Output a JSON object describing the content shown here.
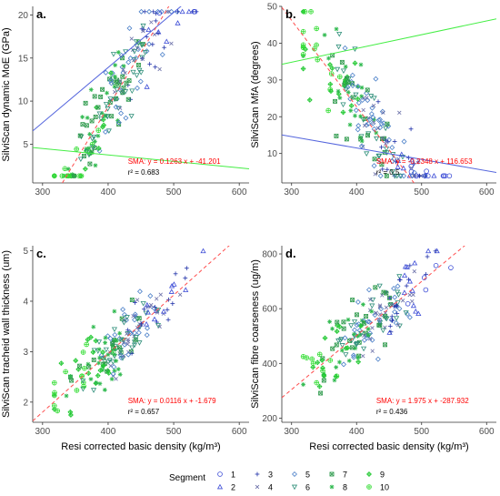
{
  "legend": {
    "title": "Segment",
    "items": [
      {
        "label": "1",
        "shape": "circle",
        "color": "#3b4bd6"
      },
      {
        "label": "2",
        "shape": "triangle",
        "color": "#3b4bd6"
      },
      {
        "label": "3",
        "shape": "plus",
        "color": "#2233aa"
      },
      {
        "label": "4",
        "shape": "cross",
        "color": "#6a6fa8"
      },
      {
        "label": "5",
        "shape": "diamond",
        "color": "#4a7fc8"
      },
      {
        "label": "6",
        "shape": "triangle-down",
        "color": "#2f8f7a"
      },
      {
        "label": "7",
        "shape": "square-x",
        "color": "#2e9a4c"
      },
      {
        "label": "8",
        "shape": "star",
        "color": "#2bb84b"
      },
      {
        "label": "9",
        "shape": "diamond-plus",
        "color": "#22c933"
      },
      {
        "label": "10",
        "shape": "circle-plus",
        "color": "#33dd33"
      }
    ]
  },
  "colors": {
    "blue_fit": "#5566dd",
    "green_fit": "#44ee44",
    "sma_line": "#ff4d4d",
    "axis": "#333333"
  },
  "chart_data": [
    {
      "type": "scatter",
      "panel": "a.",
      "xlabel": "",
      "ylabel": "SilviScan dynamic MoE (GPa)",
      "xlim": [
        285,
        615
      ],
      "ylim": [
        0.5,
        21
      ],
      "xticks": [
        300,
        400,
        500,
        600
      ],
      "yticks": [
        5,
        10,
        15,
        20
      ],
      "sma": {
        "slope": 0.1263,
        "intercept": -41.201
      },
      "equation": "SMA: y =  0.1263 x + -41.201",
      "r2": "r² = 0.683",
      "blue_fit": {
        "slope": 0.064,
        "intercept": -11.7
      },
      "green_fit": {
        "slope": -0.0075,
        "intercept": 6.75
      },
      "center": {
        "x": 420,
        "y": 12
      },
      "spread": {
        "x": 48,
        "y": 2.4
      },
      "n": 200,
      "seed": 11
    },
    {
      "type": "scatter",
      "panel": "b.",
      "xlabel": "",
      "ylabel": "SilviScan MfA (degrees)",
      "xlim": [
        285,
        615
      ],
      "ylim": [
        2,
        50
      ],
      "xticks": [
        300,
        400,
        500,
        600
      ],
      "yticks": [
        10,
        20,
        30,
        40,
        50
      ],
      "sma": {
        "slope": -0.2348,
        "intercept": 116.653
      },
      "equation": "SMA: y = -0.2348 x + 116.653",
      "r2": "r² = 0.5",
      "blue_fit": {
        "slope": -0.031,
        "intercept": 23.9
      },
      "green_fit": {
        "slope": 0.0374,
        "intercept": 23.6
      },
      "center": {
        "x": 420,
        "y": 18
      },
      "spread": {
        "x": 48,
        "y": 6
      },
      "n": 200,
      "seed": 23
    },
    {
      "type": "scatter",
      "panel": "c.",
      "xlabel": "Resi corrected basic density (kg/m³)",
      "ylabel": "SilviScan tracheid wall thickness (um)",
      "xlim": [
        285,
        615
      ],
      "ylim": [
        1.6,
        5.1
      ],
      "xticks": [
        300,
        400,
        500,
        600
      ],
      "yticks": [
        2,
        3,
        4,
        5
      ],
      "sma": {
        "slope": 0.0116,
        "intercept": -1.679
      },
      "equation": "SMA: y =  0.0116 x + -1.679",
      "r2": "r² = 0.657",
      "center": {
        "x": 420,
        "y": 3.2
      },
      "spread": {
        "x": 48,
        "y": 0.3
      },
      "n": 200,
      "seed": 37
    },
    {
      "type": "scatter",
      "panel": "d.",
      "xlabel": "Resi corrected basic density (kg/m³)",
      "ylabel": "SilviScan fibre coarseness (ug/m)",
      "xlim": [
        285,
        615
      ],
      "ylim": [
        185,
        830
      ],
      "xticks": [
        300,
        400,
        500,
        600
      ],
      "yticks": [
        200,
        400,
        600,
        800
      ],
      "sma": {
        "slope": 1.975,
        "intercept": -287.932
      },
      "equation": "SMA: y =  1.975 x + -287.932",
      "r2": "r² = 0.436",
      "center": {
        "x": 420,
        "y": 540
      },
      "spread": {
        "x": 48,
        "y": 60
      },
      "n": 200,
      "seed": 51
    }
  ]
}
